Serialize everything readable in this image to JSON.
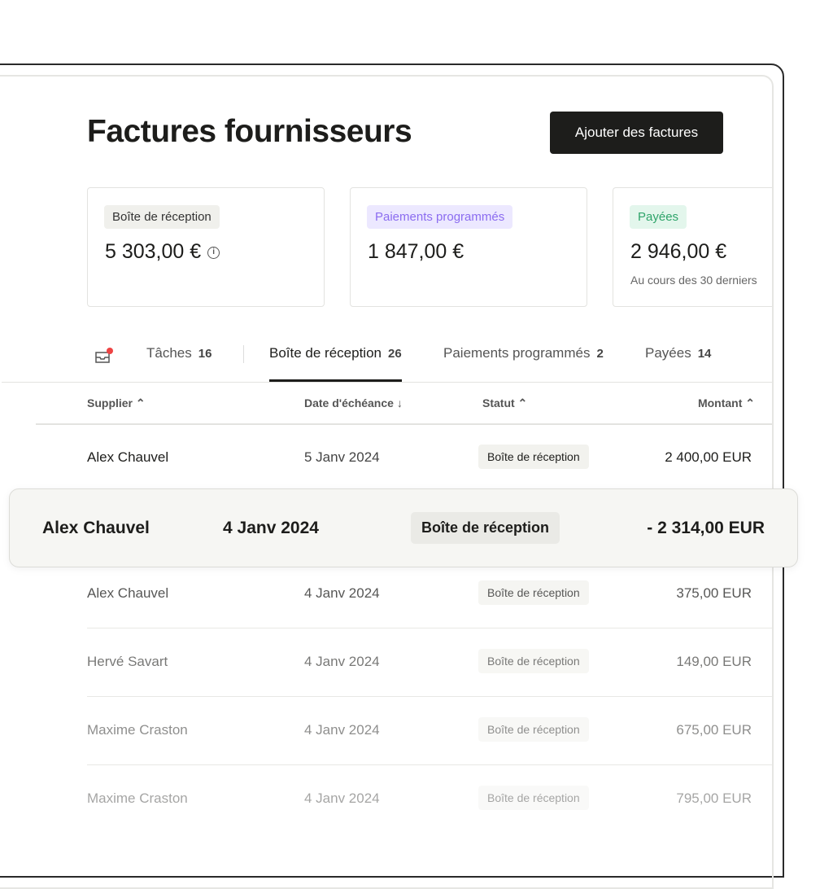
{
  "header": {
    "title": "Factures fournisseurs",
    "add_button": "Ajouter des factures"
  },
  "cards": [
    {
      "badge": "Boîte de réception",
      "amount": "5 303,00 €",
      "badge_bg": "#f0f0ec",
      "badge_color": "#333333"
    },
    {
      "badge": "Paiements programmés",
      "amount": "1 847,00 €",
      "badge_bg": "#ece8ff",
      "badge_color": "#8b6cf0"
    },
    {
      "badge": "Payées",
      "amount": "2 946,00 €",
      "subtitle": "Au cours des 30 derniers",
      "badge_bg": "#e3f6ec",
      "badge_color": "#2fa46a"
    }
  ],
  "tabs": [
    {
      "label": "Tâches",
      "count": "16"
    },
    {
      "label": "Boîte de réception",
      "count": "26",
      "active": true
    },
    {
      "label": "Paiements programmés",
      "count": "2"
    },
    {
      "label": "Payées",
      "count": "14"
    }
  ],
  "table": {
    "columns": [
      "Supplier ⌃",
      "Date d'échéance ↓",
      "Statut ⌃",
      "Montant ⌃"
    ],
    "rows": [
      {
        "supplier": "Alex Chauvel",
        "date": "5 Janv 2024",
        "status": "Boîte de réception",
        "amount": "2 400,00 EUR"
      },
      {
        "supplier": "Alex Chauvel",
        "date": "4 Janv 2024",
        "status": "Boîte de réception",
        "amount": "- 2 314,00 EUR",
        "highlighted": true
      },
      {
        "supplier": "Alex Chauvel",
        "date": "4 Janv 2024",
        "status": "Boîte de réception",
        "amount": "375,00 EUR"
      },
      {
        "supplier": "Hervé Savart",
        "date": "4 Janv 2024",
        "status": "Boîte de réception",
        "amount": "149,00 EUR"
      },
      {
        "supplier": "Maxime Craston",
        "date": "4 Janv 2024",
        "status": "Boîte de réception",
        "amount": "675,00 EUR"
      },
      {
        "supplier": "Maxime Craston",
        "date": "4 Janv 2024",
        "status": "Boîte de réception",
        "amount": "795,00 EUR"
      }
    ]
  }
}
